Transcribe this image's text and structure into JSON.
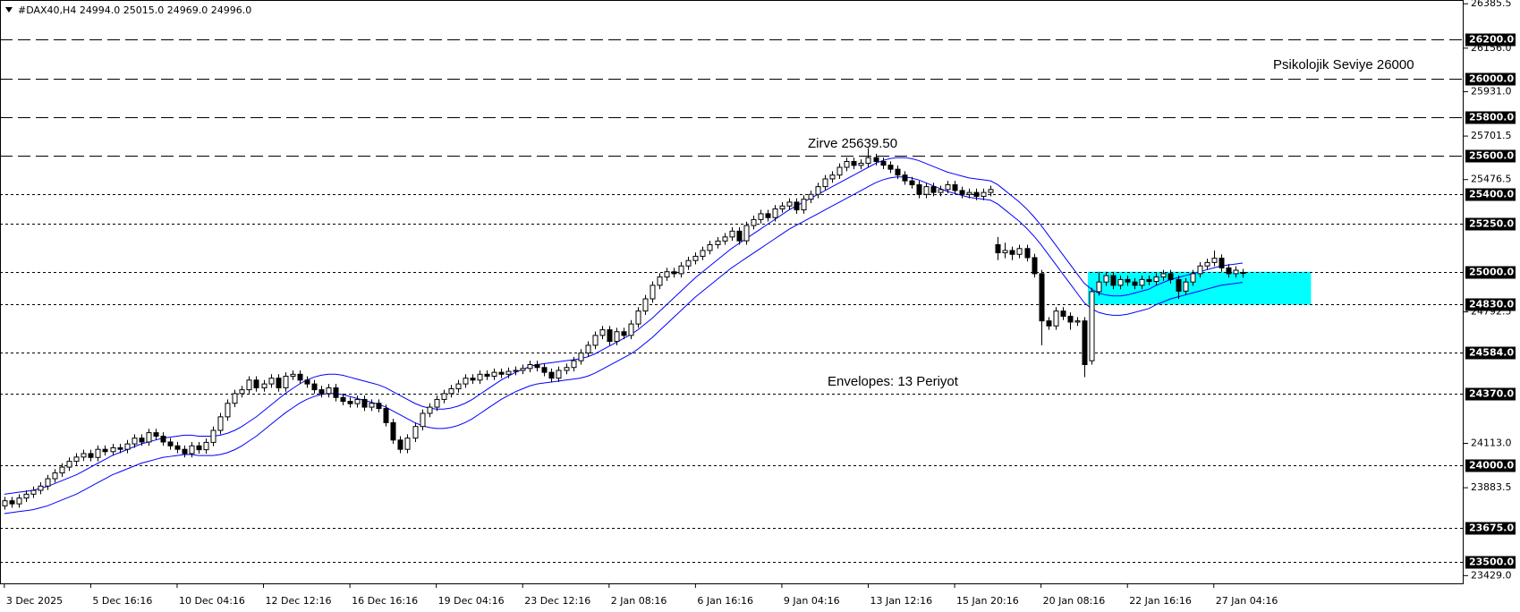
{
  "chart_data": {
    "type": "candlestick",
    "title": "#DAX40,H4  24994.0 25015.0 24969.0 24996.0",
    "xlim": [
      -0.6,
      202.7
    ],
    "ylim": [
      23389,
      26405
    ],
    "xticks": [
      {
        "value": 0,
        "label": "3 Dec 2025"
      },
      {
        "value": 12,
        "label": "5 Dec 16:16"
      },
      {
        "value": 24,
        "label": "10 Dec 04:16"
      },
      {
        "value": 36,
        "label": "12 Dec 12:16"
      },
      {
        "value": 48,
        "label": "16 Dec 16:16"
      },
      {
        "value": 60,
        "label": "19 Dec 04:16"
      },
      {
        "value": 72,
        "label": "23 Dec 12:16"
      },
      {
        "value": 84,
        "label": "2 Jan 08:16"
      },
      {
        "value": 96,
        "label": "6 Jan 16:16"
      },
      {
        "value": 108,
        "label": "9 Jan 04:16"
      },
      {
        "value": 120,
        "label": "13 Jan 12:16"
      },
      {
        "value": 132,
        "label": "15 Jan 20:16"
      },
      {
        "value": 144,
        "label": "20 Jan 08:16"
      },
      {
        "value": 156,
        "label": "22 Jan 16:16"
      },
      {
        "value": 168,
        "label": "27 Jan 04:16"
      }
    ],
    "yticks": [
      {
        "value": 26385.5,
        "label": "26385.5"
      },
      {
        "value": 26156.0,
        "label": "26156.0"
      },
      {
        "value": 25931.0,
        "label": "25931.0"
      },
      {
        "value": 25701.5,
        "label": "25701.5"
      },
      {
        "value": 25476.5,
        "label": "25476.5"
      },
      {
        "value": 24792.5,
        "label": "24792.5"
      },
      {
        "value": 24113.0,
        "label": "24113.0"
      },
      {
        "value": 23883.5,
        "label": "23883.5"
      },
      {
        "value": 23429.0,
        "label": "23429.0"
      }
    ],
    "levels": [
      {
        "value": 26200,
        "label": "26200.0",
        "style": "dash"
      },
      {
        "value": 26000,
        "label": "26000.0",
        "style": "dash"
      },
      {
        "value": 25800,
        "label": "25800.0",
        "style": "dash"
      },
      {
        "value": 25600,
        "label": "25600.0",
        "style": "dash"
      },
      {
        "value": 25400,
        "label": "25400.0",
        "style": "dot"
      },
      {
        "value": 25250,
        "label": "25250.0",
        "style": "dot"
      },
      {
        "value": 25000,
        "label": "25000.0",
        "style": "dot"
      },
      {
        "value": 24830,
        "label": "24830.0",
        "style": "dot"
      },
      {
        "value": 24584,
        "label": "24584.0",
        "style": "dot"
      },
      {
        "value": 24370,
        "label": "24370.0",
        "style": "dot"
      },
      {
        "value": 24000,
        "label": "24000.0",
        "style": "dot"
      },
      {
        "value": 23675,
        "label": "23675.0",
        "style": "dot"
      },
      {
        "value": 23500,
        "label": "23500.0",
        "style": "dot"
      }
    ],
    "zone": {
      "x": [
        150.5,
        181.5
      ],
      "y": [
        24830,
        25000
      ],
      "color": "#00ffff"
    },
    "annotations": [
      {
        "text": "Psikolojik Seviye 26000",
        "color": "#e0218a"
      },
      {
        "text": "Zirve 25639.50",
        "color": "#e0218a"
      },
      {
        "text": "Envelopes: 13 Periyot",
        "color": "#1a1acc"
      }
    ],
    "up_color": "#ffffff",
    "down_color": "#000000",
    "open": [
      23790,
      23816,
      23800,
      23830,
      23850,
      23870,
      23892,
      23930,
      23960,
      23990,
      24020,
      24042,
      24060,
      24040,
      24082,
      24070,
      24090,
      24082,
      24110,
      24140,
      24120,
      24168,
      24150,
      24120,
      24100,
      24082,
      24060,
      24100,
      24080,
      24118,
      24180,
      24250,
      24320,
      24370,
      24390,
      24440,
      24400,
      24420,
      24450,
      24400,
      24460,
      24470,
      24440,
      24420,
      24390,
      24370,
      24400,
      24350,
      24330,
      24318,
      24340,
      24300,
      24320,
      24293,
      24220,
      24130,
      24082,
      24140,
      24200,
      24268,
      24300,
      24340,
      24370,
      24395,
      24420,
      24450,
      24440,
      24470,
      24460,
      24480,
      24470,
      24485,
      24490,
      24500,
      24520,
      24505,
      24480,
      24450,
      24490,
      24505,
      24540,
      24580,
      24620,
      24671,
      24700,
      24640,
      24690,
      24671,
      24730,
      24797,
      24860,
      24930,
      24973,
      25000,
      24990,
      25030,
      25058,
      25080,
      25110,
      25140,
      25159,
      25180,
      25210,
      25160,
      25239,
      25270,
      25300,
      25280,
      25325,
      25340,
      25360,
      25320,
      25375,
      25400,
      25440,
      25480,
      25500,
      25540,
      25570,
      25550,
      25561,
      25590,
      25570,
      25551,
      25530,
      25500,
      25470,
      25450,
      25400,
      25440,
      25410,
      25425,
      25450,
      25420,
      25400,
      25410,
      25390,
      25410,
      25140,
      25098,
      25110,
      25090,
      25120,
      25073,
      24990,
      24746,
      24720,
      24797,
      24770,
      24740,
      24746,
      24540,
      24897,
      24947,
      24980,
      24930,
      24960,
      24947,
      24930,
      24960,
      24950,
      24973,
      24990,
      24960,
      24900,
      24947,
      24990,
      25030,
      25048,
      25070,
      25020,
      24990,
      24994
    ],
    "high": [
      23836,
      23836,
      23850,
      23870,
      23890,
      23912,
      23950,
      23980,
      24010,
      24040,
      24062,
      24080,
      24080,
      24102,
      24102,
      24110,
      24110,
      24130,
      24160,
      24160,
      24188,
      24188,
      24170,
      24140,
      24120,
      24102,
      24120,
      24120,
      24138,
      24200,
      24270,
      24340,
      24390,
      24410,
      24460,
      24460,
      24440,
      24470,
      24470,
      24480,
      24490,
      24490,
      24460,
      24440,
      24410,
      24420,
      24420,
      24370,
      24350,
      24360,
      24360,
      24340,
      24340,
      24313,
      24240,
      24150,
      24160,
      24220,
      24288,
      24320,
      24360,
      24390,
      24415,
      24440,
      24470,
      24470,
      24490,
      24490,
      24500,
      24500,
      24505,
      24510,
      24520,
      24540,
      24540,
      24525,
      24500,
      24510,
      24525,
      24560,
      24600,
      24640,
      24691,
      24720,
      24720,
      24710,
      24710,
      24750,
      24817,
      24880,
      24950,
      24993,
      25020,
      25020,
      25050,
      25078,
      25100,
      25130,
      25160,
      25179,
      25200,
      25230,
      25230,
      25259,
      25290,
      25320,
      25320,
      25345,
      25360,
      25380,
      25380,
      25395,
      25420,
      25460,
      25500,
      25520,
      25560,
      25590,
      25590,
      25581,
      25639.5,
      25610,
      25590,
      25571,
      25550,
      25520,
      25490,
      25470,
      25460,
      25460,
      25445,
      25470,
      25470,
      25440,
      25430,
      25430,
      25430,
      25445,
      25180,
      25150,
      25130,
      25140,
      25140,
      25093,
      25010,
      24766,
      24817,
      24817,
      24790,
      24766,
      24766,
      24917,
      25000,
      25000,
      25000,
      24980,
      24980,
      24967,
      24980,
      24980,
      24993,
      25010,
      25010,
      24980,
      24967,
      25010,
      25050,
      25068,
      25110,
      25090,
      25040,
      25028,
      25015
    ],
    "low": [
      23770,
      23780,
      23780,
      23810,
      23830,
      23850,
      23872,
      23910,
      23940,
      23970,
      24000,
      24022,
      24020,
      24020,
      24050,
      24050,
      24062,
      24062,
      24090,
      24100,
      24100,
      24130,
      24100,
      24080,
      24062,
      24040,
      24040,
      24060,
      24060,
      24098,
      24160,
      24230,
      24300,
      24350,
      24370,
      24380,
      24380,
      24400,
      24380,
      24380,
      24440,
      24420,
      24400,
      24370,
      24350,
      24350,
      24330,
      24310,
      24298,
      24298,
      24280,
      24280,
      24273,
      24200,
      24110,
      24062,
      24062,
      24120,
      24180,
      24248,
      24280,
      24320,
      24350,
      24375,
      24400,
      24420,
      24420,
      24440,
      24440,
      24450,
      24450,
      24465,
      24470,
      24480,
      24485,
      24460,
      24430,
      24430,
      24470,
      24485,
      24520,
      24560,
      24600,
      24651,
      24620,
      24620,
      24651,
      24651,
      24710,
      24777,
      24840,
      24910,
      24953,
      24970,
      24970,
      25010,
      25038,
      25060,
      25090,
      25120,
      25139,
      25160,
      25140,
      25140,
      25219,
      25250,
      25260,
      25260,
      25305,
      25320,
      25300,
      25300,
      25355,
      25380,
      25420,
      25460,
      25480,
      25520,
      25530,
      25530,
      25541,
      25550,
      25531,
      25510,
      25480,
      25450,
      25430,
      25380,
      25380,
      25390,
      25390,
      25405,
      25400,
      25380,
      25380,
      25370,
      25370,
      25390,
      25060,
      25070,
      25060,
      25070,
      25053,
      24970,
      24620,
      24700,
      24700,
      24750,
      24700,
      24720,
      24455,
      24520,
      24877,
      24927,
      24910,
      24910,
      24927,
      24910,
      24910,
      24930,
      24930,
      24953,
      24940,
      24860,
      24880,
      24927,
      24970,
      25010,
      25028,
      25000,
      24970,
      24970,
      24969
    ],
    "close": [
      23816,
      23800,
      23830,
      23850,
      23870,
      23892,
      23930,
      23960,
      23990,
      24020,
      24042,
      24060,
      24040,
      24082,
      24070,
      24090,
      24082,
      24110,
      24140,
      24120,
      24168,
      24150,
      24120,
      24100,
      24082,
      24060,
      24100,
      24080,
      24118,
      24180,
      24250,
      24320,
      24370,
      24390,
      24440,
      24400,
      24420,
      24450,
      24400,
      24460,
      24470,
      24440,
      24420,
      24390,
      24370,
      24400,
      24350,
      24330,
      24318,
      24340,
      24300,
      24320,
      24293,
      24220,
      24130,
      24082,
      24140,
      24200,
      24268,
      24300,
      24340,
      24370,
      24395,
      24420,
      24450,
      24440,
      24470,
      24460,
      24480,
      24470,
      24485,
      24490,
      24500,
      24520,
      24505,
      24480,
      24450,
      24490,
      24505,
      24540,
      24580,
      24620,
      24671,
      24700,
      24640,
      24690,
      24671,
      24730,
      24797,
      24860,
      24930,
      24973,
      25000,
      24990,
      25030,
      25058,
      25080,
      25110,
      25140,
      25159,
      25180,
      25210,
      25160,
      25239,
      25270,
      25300,
      25280,
      25325,
      25340,
      25360,
      25320,
      25375,
      25400,
      25440,
      25480,
      25500,
      25540,
      25570,
      25550,
      25561,
      25590,
      25570,
      25551,
      25530,
      25500,
      25470,
      25450,
      25400,
      25440,
      25410,
      25425,
      25450,
      25420,
      25400,
      25410,
      25390,
      25410,
      25425,
      25098,
      25110,
      25090,
      25120,
      25073,
      24990,
      24746,
      24720,
      24797,
      24770,
      24740,
      24746,
      24520,
      24897,
      24947,
      24980,
      24930,
      24960,
      24947,
      24930,
      24960,
      24950,
      24973,
      24990,
      24960,
      24900,
      24947,
      24990,
      25030,
      25048,
      25070,
      25020,
      24990,
      25008,
      24996
    ],
    "envelopes": {
      "color": "#0000ff",
      "upper": [
        23850,
        23855,
        23860,
        23865,
        23870,
        23880,
        23890,
        23905,
        23920,
        23935,
        23950,
        23970,
        23990,
        24010,
        24030,
        24050,
        24065,
        24080,
        24095,
        24110,
        24120,
        24130,
        24140,
        24145,
        24150,
        24155,
        24155,
        24150,
        24150,
        24150,
        24155,
        24165,
        24180,
        24200,
        24225,
        24250,
        24280,
        24310,
        24340,
        24370,
        24395,
        24420,
        24440,
        24455,
        24465,
        24470,
        24470,
        24465,
        24455,
        24445,
        24435,
        24425,
        24415,
        24400,
        24380,
        24360,
        24340,
        24320,
        24305,
        24295,
        24290,
        24290,
        24295,
        24305,
        24320,
        24340,
        24365,
        24390,
        24415,
        24440,
        24460,
        24480,
        24495,
        24510,
        24520,
        24525,
        24530,
        24535,
        24540,
        24545,
        24550,
        24560,
        24575,
        24595,
        24615,
        24635,
        24655,
        24675,
        24700,
        24730,
        24760,
        24795,
        24830,
        24865,
        24900,
        24935,
        24970,
        25000,
        25030,
        25060,
        25090,
        25120,
        25145,
        25170,
        25195,
        25220,
        25245,
        25270,
        25295,
        25320,
        25340,
        25360,
        25380,
        25400,
        25420,
        25440,
        25460,
        25480,
        25500,
        25520,
        25540,
        25560,
        25575,
        25585,
        25590,
        25590,
        25585,
        25575,
        25560,
        25545,
        25530,
        25515,
        25505,
        25495,
        25485,
        25480,
        25475,
        25470,
        25450,
        25420,
        25390,
        25360,
        25325,
        25285,
        25240,
        25190,
        25140,
        25090,
        25040,
        24990,
        24940,
        24910,
        24890,
        24880,
        24875,
        24875,
        24880,
        24890,
        24900,
        24910,
        24930,
        24945,
        24960,
        24970,
        24980,
        24990,
        25000,
        25010,
        25020,
        25030,
        25035,
        25040,
        25045
      ],
      "lower": [
        23750,
        23755,
        23760,
        23765,
        23770,
        23780,
        23790,
        23805,
        23820,
        23835,
        23850,
        23870,
        23890,
        23910,
        23930,
        23950,
        23965,
        23980,
        23995,
        24010,
        24020,
        24030,
        24040,
        24045,
        24050,
        24055,
        24055,
        24050,
        24050,
        24050,
        24055,
        24065,
        24080,
        24100,
        24125,
        24150,
        24180,
        24210,
        24240,
        24270,
        24295,
        24320,
        24340,
        24355,
        24365,
        24370,
        24370,
        24365,
        24355,
        24345,
        24335,
        24325,
        24315,
        24300,
        24280,
        24260,
        24240,
        24220,
        24205,
        24195,
        24190,
        24190,
        24195,
        24205,
        24220,
        24240,
        24265,
        24290,
        24315,
        24340,
        24360,
        24380,
        24395,
        24410,
        24420,
        24425,
        24430,
        24435,
        24440,
        24445,
        24450,
        24460,
        24475,
        24495,
        24515,
        24535,
        24555,
        24575,
        24600,
        24630,
        24660,
        24695,
        24730,
        24765,
        24800,
        24835,
        24870,
        24900,
        24930,
        24960,
        24990,
        25020,
        25045,
        25070,
        25095,
        25120,
        25145,
        25170,
        25195,
        25220,
        25240,
        25260,
        25280,
        25300,
        25320,
        25340,
        25360,
        25380,
        25400,
        25420,
        25440,
        25460,
        25475,
        25485,
        25490,
        25490,
        25485,
        25475,
        25460,
        25445,
        25430,
        25415,
        25405,
        25395,
        25385,
        25380,
        25375,
        25370,
        25350,
        25320,
        25290,
        25260,
        25225,
        25185,
        25140,
        25090,
        25040,
        24990,
        24940,
        24890,
        24840,
        24810,
        24790,
        24780,
        24775,
        24775,
        24780,
        24790,
        24800,
        24810,
        24830,
        24845,
        24860,
        24870,
        24880,
        24890,
        24900,
        24910,
        24920,
        24930,
        24935,
        24940,
        24945
      ]
    }
  }
}
